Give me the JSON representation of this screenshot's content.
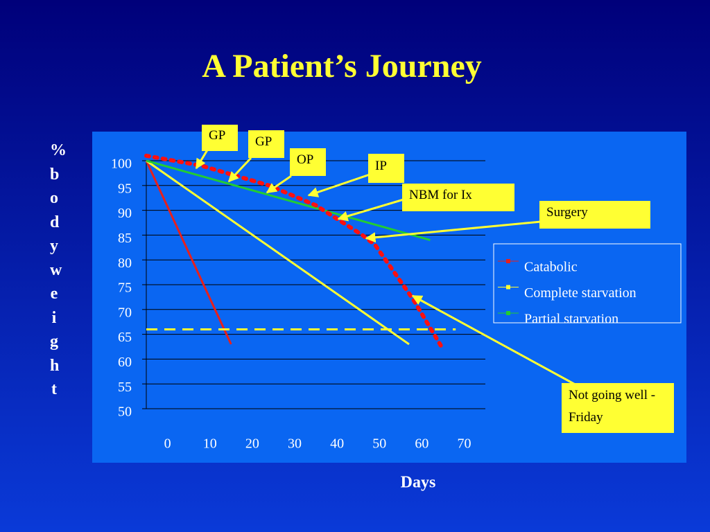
{
  "chart_data": {
    "type": "line",
    "title": "A Patient’s Journey",
    "x_label": "Days",
    "y_label": "% body weight",
    "xlim": [
      -5,
      75
    ],
    "xticks": [
      0,
      10,
      20,
      30,
      40,
      50,
      60,
      70
    ],
    "ylim": [
      50,
      100
    ],
    "yticks": [
      50,
      55,
      60,
      65,
      70,
      75,
      80,
      85,
      90,
      95,
      100
    ],
    "grid": true,
    "legend": "right",
    "series": [
      {
        "name": "Catabolic",
        "color": "#e8201c",
        "x": [
          -5,
          15
        ],
        "values": [
          100,
          63
        ]
      },
      {
        "name": "Complete starvation",
        "color": "#ffff33",
        "x": [
          -5,
          57
        ],
        "values": [
          100,
          63
        ]
      },
      {
        "name": "Partial starvation",
        "color": "#22cc33",
        "x": [
          -5,
          62
        ],
        "values": [
          100,
          84
        ]
      }
    ],
    "journey": {
      "color": "#ff1010",
      "x": [
        -5,
        8,
        24,
        35,
        46,
        49,
        58,
        65
      ],
      "values": [
        101,
        99,
        95,
        91,
        85,
        83,
        72,
        62
      ]
    },
    "threshold": {
      "color": "#ffff33",
      "x": [
        -5,
        68
      ],
      "values": [
        66,
        66
      ]
    },
    "annotations": [
      "GP",
      "GP",
      "OP",
      "IP",
      "NBM for Ix",
      "Surgery",
      "Not going well - Friday"
    ]
  }
}
